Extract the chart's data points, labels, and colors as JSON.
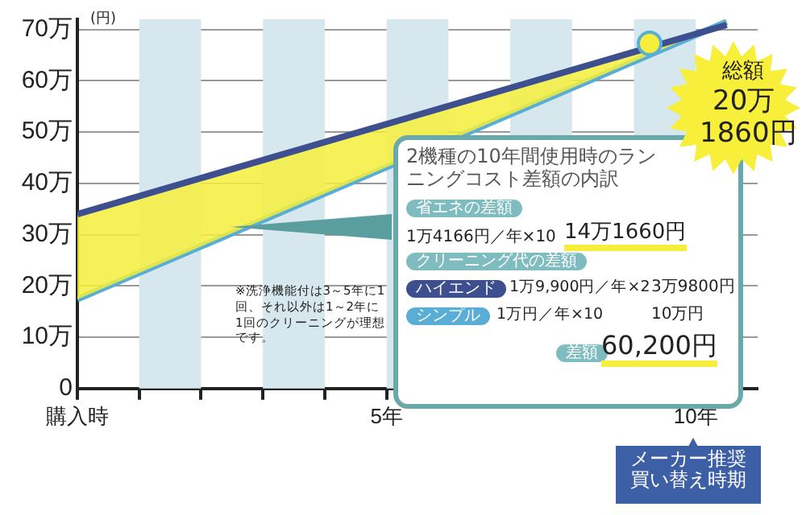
{
  "chart_data": {
    "type": "line",
    "ylabel": "(円)",
    "x": [
      0,
      10.5
    ],
    "series": [
      {
        "color": "#3d4f8f",
        "values": [
          34,
          70.9
        ]
      },
      {
        "color": "#5aaed6",
        "values": [
          17.4,
          71.5
        ]
      }
    ],
    "xlim": [
      0,
      11
    ],
    "xticks": [
      {
        "value": 0,
        "label": "購入時"
      },
      {
        "value": 1,
        "label": null
      },
      {
        "value": 2,
        "label": null
      },
      {
        "value": 3,
        "label": null
      },
      {
        "value": 4,
        "label": null
      },
      {
        "value": 5,
        "label": "5年"
      },
      {
        "value": 6,
        "label": null
      },
      {
        "value": 7,
        "label": null
      },
      {
        "value": 8,
        "label": null
      },
      {
        "value": 9,
        "label": null
      },
      {
        "value": 10,
        "label": "10年"
      }
    ],
    "ylim": [
      0,
      72
    ],
    "yticks": [
      0,
      {
        "value": 10,
        "label": "10万"
      },
      {
        "value": 20,
        "label": "20万"
      },
      {
        "value": 30,
        "label": "30万"
      },
      {
        "value": 40,
        "label": "40万"
      },
      {
        "value": 50,
        "label": "50万"
      },
      {
        "value": 60,
        "label": "60万"
      },
      {
        "value": 70,
        "label": "70万"
      }
    ],
    "bands": [
      {
        "axis": "x",
        "from": 1,
        "to": 2,
        "color": "#d6e8ee"
      },
      {
        "axis": "x",
        "from": 3,
        "to": 4,
        "color": "#d6e8ee"
      },
      {
        "axis": "x",
        "from": 5,
        "to": 6,
        "color": "#d6e8ee"
      },
      {
        "axis": "x",
        "from": 7,
        "to": 8,
        "color": "#d6e8ee"
      },
      {
        "axis": "x",
        "from": 9,
        "to": 10,
        "color": "#d6e8ee"
      }
    ],
    "grid": "y",
    "legend": false,
    "marker": "none",
    "line_style": "solid",
    "annotations": [
      "※洗浄機能付は3～5年に1回、それ以外は1～2年に1回のクリーニングが理想です。",
      "2機種の10年間使用時のランニングコスト差額の内訳",
      "省エネの差額",
      "1万4166円／年×10",
      "14万1660円",
      "クリーニング代の差額",
      "ハイエンド",
      "1万9,900円／年×2",
      "3万9800円",
      "シンプル",
      "1万円／年×10",
      "10万円",
      "差額",
      "60,200円",
      "総額",
      "20万",
      "1860円",
      "メーカー推奨買い替え時期"
    ]
  }
}
